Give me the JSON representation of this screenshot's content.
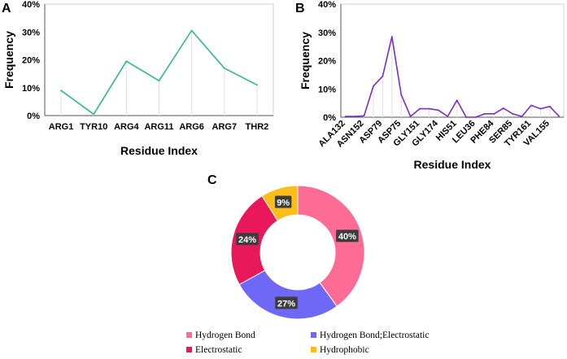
{
  "chart_data": [
    {
      "panel": "A",
      "type": "line",
      "categories": [
        "ARG1",
        "TYR10",
        "ARG4",
        "ARG11",
        "ARG6",
        "ARG7",
        "THR2"
      ],
      "series": [
        {
          "name": "Frequency",
          "values": [
            9,
            0.5,
            19.5,
            12.5,
            30.5,
            17,
            11
          ]
        }
      ],
      "xlabel": "Residue Index",
      "ylabel": "Frequency",
      "ylim": [
        0,
        40
      ],
      "yticks": [
        "0%",
        "10%",
        "20%",
        "30%",
        "40%"
      ],
      "color": "#2fb88a",
      "grid": false
    },
    {
      "panel": "B",
      "type": "line",
      "categories": [
        "ALA132",
        "",
        "ASN152",
        "",
        "ASP79",
        "",
        "ASP75",
        "",
        "GLY151",
        "",
        "GLY174",
        "",
        "HIS51",
        "",
        "LEU36",
        "",
        "PHE84",
        "",
        "SER85",
        "",
        "TYR161",
        "",
        "VAL155",
        ""
      ],
      "series": [
        {
          "name": "Frequency",
          "values": [
            0.3,
            0.3,
            0.5,
            11,
            14.5,
            28.5,
            8,
            0.3,
            3,
            3,
            2.5,
            0.3,
            6,
            0,
            0,
            1.2,
            1.2,
            3.2,
            1.2,
            0.3,
            4.2,
            3,
            3.8,
            0.3
          ]
        }
      ],
      "xlabel": "Residue Index",
      "ylabel": "Frequency",
      "ylim": [
        0,
        40
      ],
      "yticks": [
        "0%",
        "10%",
        "20%",
        "30%",
        "40%"
      ],
      "color": "#7b2cc9",
      "grid": false
    },
    {
      "panel": "C",
      "type": "pie",
      "donut": true,
      "slices": [
        {
          "label": "Hydrogen Bond",
          "value": 40,
          "text": "40%",
          "color": "#fe6b95"
        },
        {
          "label": "Hydrogen Bond;Electrostatic",
          "value": 27,
          "text": "27%",
          "color": "#6f68f6"
        },
        {
          "label": "Electrostatic",
          "value": 24,
          "text": "24%",
          "color": "#e8185a"
        },
        {
          "label": "Hydrophobic",
          "value": 9,
          "text": "9%",
          "color": "#fbbd17"
        }
      ],
      "legend_position": "bottom"
    }
  ]
}
